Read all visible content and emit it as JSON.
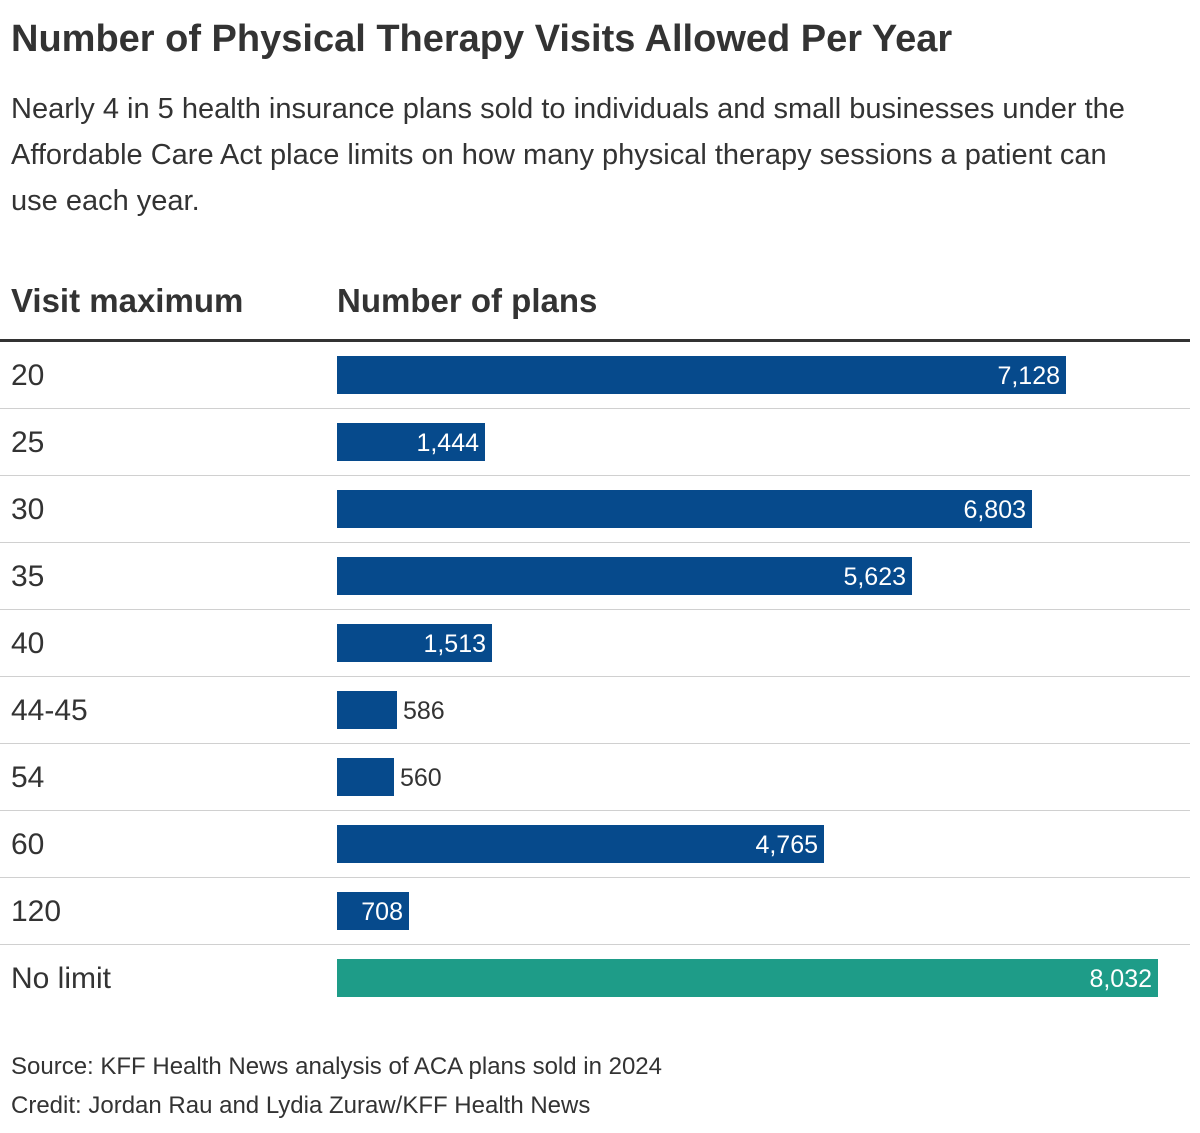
{
  "chart_data": {
    "type": "bar",
    "orientation": "horizontal",
    "title": "Number of Physical Therapy Visits Allowed Per Year",
    "subtitle": "Nearly 4 in 5 health insurance plans sold to individuals and small businesses under the Affordable Care Act place limits on how many physical therapy sessions a patient can use each year.",
    "xlabel": "Number of plans",
    "ylabel": "Visit maximum",
    "xlim": [
      0,
      8032
    ],
    "categories": [
      "20",
      "25",
      "30",
      "35",
      "40",
      "44-45",
      "54",
      "60",
      "120",
      "No limit"
    ],
    "values": [
      7128,
      1444,
      6803,
      5623,
      1513,
      586,
      560,
      4765,
      708,
      8032
    ],
    "value_labels": [
      "7,128",
      "1,444",
      "6,803",
      "5,623",
      "1,513",
      "586",
      "560",
      "4,765",
      "708",
      "8,032"
    ],
    "bar_colors": [
      "#064a8c",
      "#064a8c",
      "#064a8c",
      "#064a8c",
      "#064a8c",
      "#064a8c",
      "#064a8c",
      "#064a8c",
      "#064a8c",
      "#1e9c88"
    ],
    "source": "Source: KFF Health News analysis of ACA plans sold in 2024",
    "credit": "Credit: Jordan Rau and Lydia Zuraw/KFF Health News"
  }
}
